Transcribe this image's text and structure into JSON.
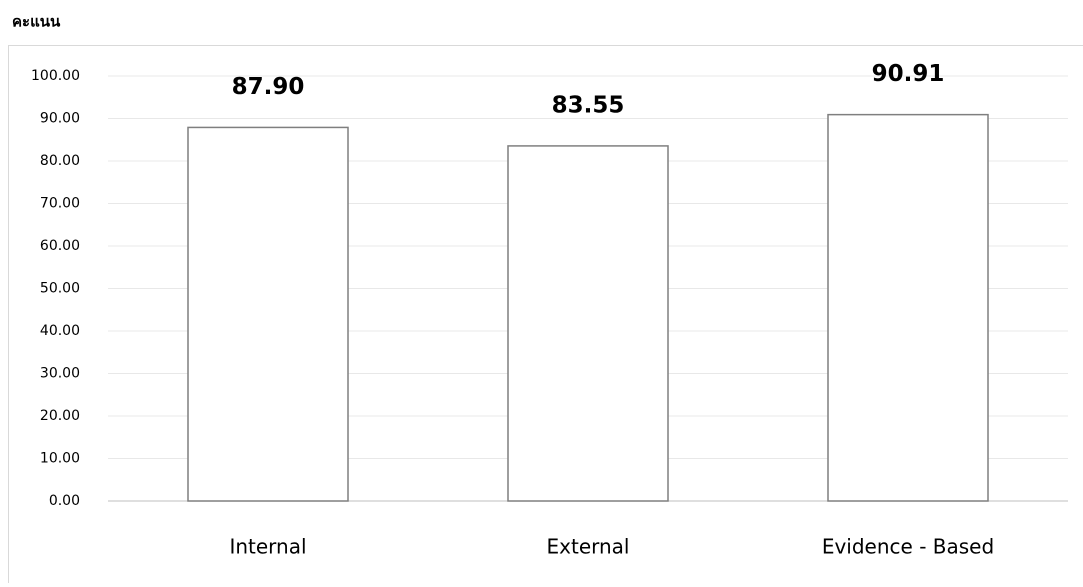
{
  "chart_data": {
    "type": "bar",
    "title": "คะแนน",
    "categories": [
      "Internal",
      "External",
      "Evidence - Based"
    ],
    "values": [
      87.9,
      83.55,
      90.91
    ],
    "value_labels": [
      "87.90",
      "83.55",
      "90.91"
    ],
    "color": "#ffffff",
    "ylim": [
      0,
      100
    ],
    "yticks": [
      {
        "value": 0,
        "label": "0.00"
      },
      {
        "value": 10,
        "label": "10.00"
      },
      {
        "value": 20,
        "label": "20.00"
      },
      {
        "value": 30,
        "label": "30.00"
      },
      {
        "value": 40,
        "label": "40.00"
      },
      {
        "value": 50,
        "label": "50.00"
      },
      {
        "value": 60,
        "label": "60.00"
      },
      {
        "value": 70,
        "label": "70.00"
      },
      {
        "value": 80,
        "label": "80.00"
      },
      {
        "value": 90,
        "label": "90.00"
      },
      {
        "value": 100,
        "label": "100.00"
      }
    ],
    "grid": true
  }
}
